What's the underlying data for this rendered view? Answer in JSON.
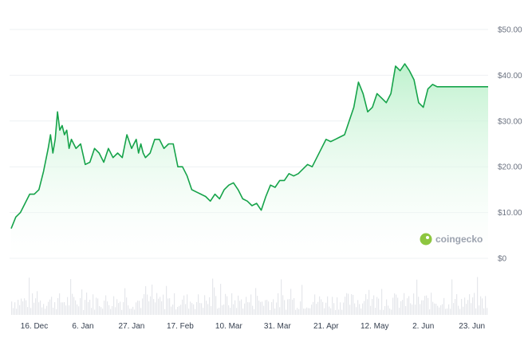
{
  "chart_data": {
    "type": "area",
    "y_unit_prefix": "$",
    "ylim": [
      0,
      50
    ],
    "y_ticks": [
      "$50.00",
      "$40.00",
      "$30.00",
      "$20.00",
      "$10.00",
      "$0"
    ],
    "y_tick_values": [
      50,
      40,
      30,
      20,
      10,
      0
    ],
    "x_tick_labels": [
      "16. Dec",
      "6. Jan",
      "27. Jan",
      "17. Feb",
      "10. Mar",
      "31. Mar",
      "21. Apr",
      "12. May",
      "2. Jun",
      "23. Jun"
    ],
    "x_tick_day_offsets": [
      10,
      31,
      52,
      73,
      94,
      115,
      136,
      157,
      178,
      199
    ],
    "grid": true,
    "series": [
      {
        "x_day_offsets": [
          0,
          2,
          4,
          6,
          8,
          10,
          12,
          14,
          16,
          17,
          18,
          19,
          20,
          21,
          22,
          23,
          24,
          25,
          26,
          27,
          28,
          30,
          32,
          34,
          36,
          38,
          40,
          42,
          44,
          46,
          48,
          50,
          52,
          54,
          55,
          56,
          57,
          58,
          60,
          62,
          64,
          66,
          68,
          70,
          72,
          74,
          76,
          78,
          80,
          82,
          84,
          86,
          88,
          90,
          92,
          94,
          96,
          98,
          100,
          102,
          104,
          106,
          108,
          110,
          112,
          114,
          116,
          118,
          120,
          122,
          124,
          126,
          128,
          130,
          132,
          134,
          136,
          138,
          140,
          142,
          144,
          146,
          148,
          150,
          152,
          154,
          156,
          158,
          160,
          162,
          164,
          166,
          168,
          170,
          172,
          174,
          176,
          178,
          180,
          182,
          184,
          186,
          188,
          190,
          192,
          194,
          196,
          198,
          200,
          202,
          204,
          206
        ],
        "values": [
          6.5,
          9,
          10,
          12,
          14,
          14,
          15,
          19,
          24,
          27,
          23,
          26,
          32,
          28,
          29,
          27,
          28,
          24,
          26,
          25,
          24,
          25,
          20.5,
          21,
          24,
          23,
          21,
          24,
          22,
          23,
          22,
          27,
          24,
          26,
          23,
          25,
          23,
          22,
          23,
          26,
          26,
          24,
          25,
          25,
          20,
          20,
          18,
          15,
          14.5,
          14,
          13.5,
          12.5,
          14,
          13,
          15,
          16,
          16.5,
          15,
          13,
          12.5,
          11.5,
          12,
          10.5,
          13.5,
          16,
          15.5,
          17,
          17,
          18.5,
          18,
          18.5,
          19.5,
          20.5,
          20,
          22,
          24,
          26,
          25.5,
          26,
          26.5,
          27,
          30,
          33,
          38.5,
          36,
          32,
          33,
          36,
          35,
          34,
          36,
          42,
          41,
          42.5,
          41,
          39,
          34,
          33,
          37,
          38,
          37.5,
          37.5,
          37.5,
          37.5,
          37.5,
          37.5,
          37.5,
          37.5,
          37.5,
          37.5,
          37.5,
          37.5
        ]
      }
    ]
  },
  "watermark": {
    "brand": "coingecko"
  },
  "colors": {
    "line": "#16a34a",
    "area_top": "#bbf7d0",
    "grid": "#eef0f3",
    "volume": "#e5e7eb"
  }
}
